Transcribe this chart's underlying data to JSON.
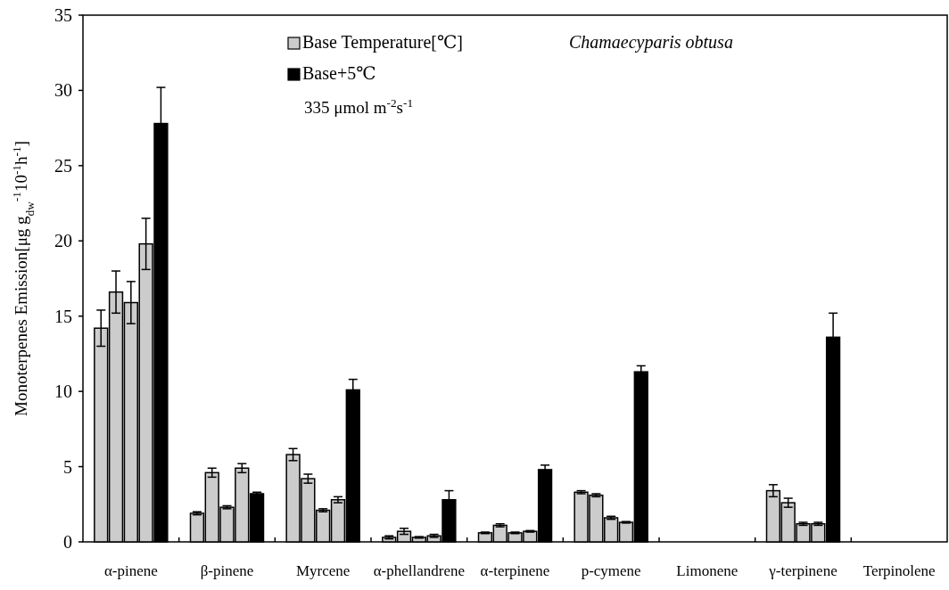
{
  "chart_data": {
    "type": "bar",
    "ylabel": "Monoterpenes Emission[μg g$_{dw}$$^{-1}$10$^{-1}$h$^{-1}$]",
    "categories": [
      "α-pinene",
      "β-pinene",
      "Myrcene",
      "α-phellandrene",
      "α-terpinene",
      "p-cymene",
      "Limonene",
      "γ-terpinene",
      "Terpinolene"
    ],
    "series": [
      {
        "name": "Base Temperature[℃]",
        "color": "#cccccc",
        "values": [
          14.2,
          1.9,
          5.8,
          0.3,
          0.6,
          3.3,
          null,
          3.4,
          null
        ],
        "errors": [
          1.2,
          0.1,
          0.4,
          0.1,
          0.05,
          0.1,
          null,
          0.4,
          null
        ]
      },
      {
        "color": "#cccccc",
        "values": [
          16.6,
          4.6,
          4.2,
          0.7,
          1.1,
          3.1,
          null,
          2.6,
          null
        ],
        "errors": [
          1.4,
          0.3,
          0.3,
          0.2,
          0.1,
          0.1,
          null,
          0.3,
          null
        ]
      },
      {
        "color": "#cccccc",
        "values": [
          15.9,
          2.3,
          2.1,
          0.3,
          0.6,
          1.6,
          null,
          1.2,
          null
        ],
        "errors": [
          1.4,
          0.1,
          0.1,
          0.05,
          0.05,
          0.1,
          null,
          0.1,
          null
        ]
      },
      {
        "color": "#cccccc",
        "values": [
          19.8,
          4.9,
          2.8,
          0.4,
          0.7,
          1.3,
          null,
          1.2,
          null
        ],
        "errors": [
          1.7,
          0.3,
          0.2,
          0.1,
          0.05,
          0.05,
          null,
          0.1,
          null
        ]
      },
      {
        "name": "Base+5℃",
        "color": "#000000",
        "values": [
          27.8,
          3.2,
          10.1,
          2.8,
          4.8,
          11.3,
          null,
          13.6,
          null
        ],
        "errors": [
          2.4,
          0.1,
          0.7,
          0.6,
          0.3,
          0.4,
          null,
          1.6,
          null
        ]
      }
    ],
    "ylim": [
      0,
      35
    ],
    "yticks": [
      0,
      5,
      10,
      15,
      20,
      25,
      30,
      35
    ],
    "grid": false,
    "legend": "top",
    "annotations": [
      "Chamaecyparis obtusa",
      "335 μmol m$^{-2}$s$^{-1}$"
    ]
  }
}
